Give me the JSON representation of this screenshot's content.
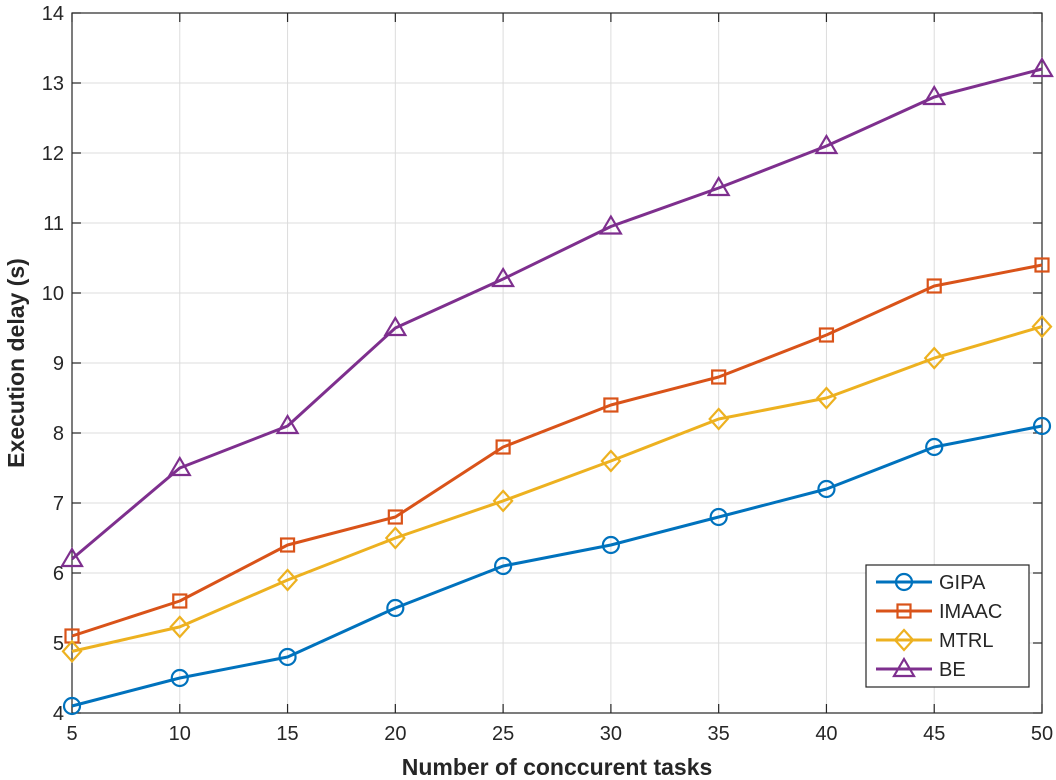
{
  "chart_data": {
    "type": "line",
    "title": "",
    "xlabel": "Number of conccurent tasks",
    "ylabel": "Execution delay (s)",
    "x": [
      5,
      10,
      15,
      20,
      25,
      30,
      35,
      40,
      45,
      50
    ],
    "xticks": [
      5,
      10,
      15,
      20,
      25,
      30,
      35,
      40,
      45,
      50
    ],
    "yticks": [
      4,
      5,
      6,
      7,
      8,
      9,
      10,
      11,
      12,
      13,
      14
    ],
    "xlim": [
      5,
      50
    ],
    "ylim": [
      4,
      14
    ],
    "grid": true,
    "legend_position": "bottom-right",
    "series": [
      {
        "name": "GIPA",
        "marker": "circle",
        "color": "#0072BD",
        "values": [
          4.1,
          4.5,
          4.8,
          5.5,
          6.1,
          6.4,
          6.8,
          7.2,
          7.8,
          8.1
        ]
      },
      {
        "name": "IMAAC",
        "marker": "square",
        "color": "#D95319",
        "values": [
          5.1,
          5.6,
          6.4,
          6.8,
          7.8,
          8.4,
          8.8,
          9.4,
          10.1,
          10.4
        ]
      },
      {
        "name": "MTRL",
        "marker": "diamond",
        "color": "#EDB120",
        "values": [
          4.88,
          5.23,
          5.9,
          6.5,
          7.03,
          7.6,
          8.2,
          8.5,
          9.07,
          9.52
        ]
      },
      {
        "name": "BE",
        "marker": "triangle",
        "color": "#7E2F8E",
        "values": [
          6.2,
          7.5,
          8.1,
          9.5,
          10.2,
          10.95,
          11.5,
          12.1,
          12.8,
          13.2
        ]
      }
    ]
  }
}
